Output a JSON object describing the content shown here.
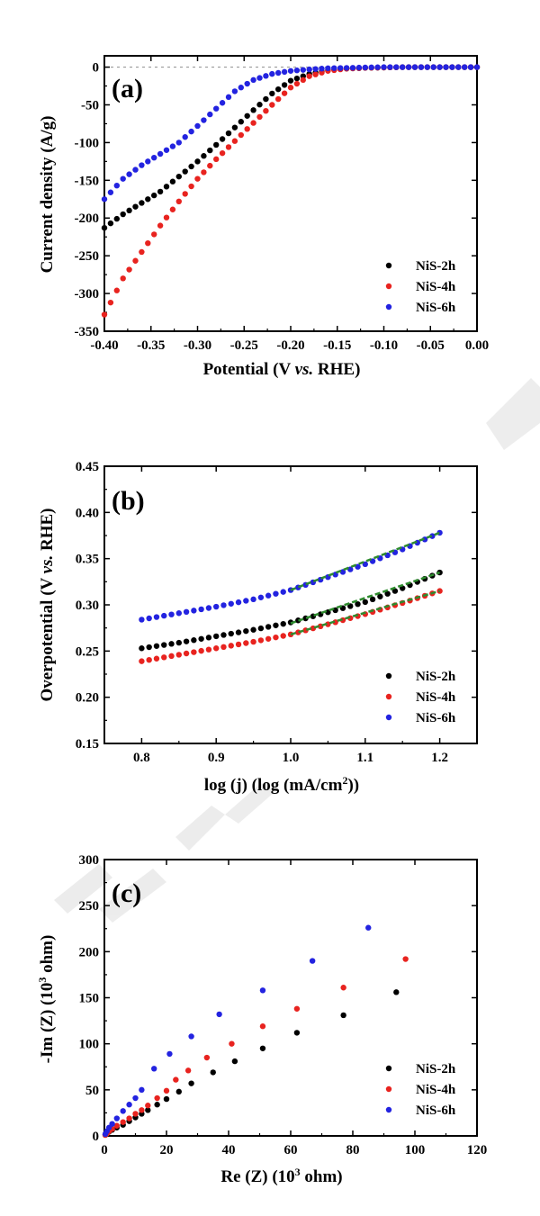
{
  "chart_data": [
    {
      "type": "scatter",
      "panel_label": "(a)",
      "xlabel": "Potential (V vs. RHE)",
      "ylabel": "Current density (A/g)",
      "xlim": [
        -0.4,
        0.0
      ],
      "ylim": [
        -350,
        15
      ],
      "xticks": [
        "-0.40",
        "-0.35",
        "-0.30",
        "-0.25",
        "-0.20",
        "-0.15",
        "-0.10",
        "-0.05",
        "0.00"
      ],
      "yticks": [
        "0",
        "-50",
        "-100",
        "-150",
        "-200",
        "-250",
        "-300",
        "-350"
      ],
      "xtick_values": [
        -0.4,
        -0.35,
        -0.3,
        -0.25,
        -0.2,
        -0.15,
        -0.1,
        -0.05,
        0.0
      ],
      "ytick_values": [
        0,
        -50,
        -100,
        -150,
        -200,
        -250,
        -300,
        -350
      ],
      "reference_line_y": 0,
      "legend_position": "bottom-right",
      "series": [
        {
          "name": "NiS-2h",
          "color": "#000000",
          "x": [
            -0.4,
            -0.38,
            -0.36,
            -0.34,
            -0.32,
            -0.3,
            -0.28,
            -0.26,
            -0.24,
            -0.22,
            -0.2,
            -0.18,
            -0.16,
            -0.14,
            -0.12,
            -0.1,
            -0.08,
            -0.06,
            -0.04,
            -0.02,
            0.0
          ],
          "y": [
            -213,
            -195,
            -180,
            -165,
            -145,
            -125,
            -103,
            -80,
            -57,
            -35,
            -18,
            -9,
            -4,
            -2,
            -1,
            -0.5,
            0,
            0,
            0,
            0,
            0
          ]
        },
        {
          "name": "NiS-4h",
          "color": "#e8231f",
          "x": [
            -0.4,
            -0.38,
            -0.36,
            -0.34,
            -0.32,
            -0.3,
            -0.28,
            -0.26,
            -0.24,
            -0.22,
            -0.2,
            -0.18,
            -0.16,
            -0.14,
            -0.12,
            -0.1,
            -0.08,
            -0.06,
            -0.04,
            -0.02,
            0.0
          ],
          "y": [
            -328,
            -280,
            -245,
            -210,
            -178,
            -148,
            -122,
            -98,
            -74,
            -50,
            -27,
            -12,
            -5,
            -2,
            -1,
            -0.5,
            0,
            0,
            0,
            0,
            0
          ]
        },
        {
          "name": "NiS-6h",
          "color": "#2323e0",
          "x": [
            -0.4,
            -0.38,
            -0.36,
            -0.34,
            -0.32,
            -0.3,
            -0.28,
            -0.26,
            -0.24,
            -0.22,
            -0.2,
            -0.18,
            -0.16,
            -0.14,
            -0.12,
            -0.1,
            -0.08,
            -0.06,
            -0.04,
            -0.02,
            0.0
          ],
          "y": [
            -175,
            -148,
            -130,
            -115,
            -100,
            -78,
            -55,
            -32,
            -17,
            -9,
            -5,
            -3,
            -1.5,
            -1,
            -0.5,
            0,
            0,
            0,
            0,
            0,
            0
          ]
        }
      ]
    },
    {
      "type": "scatter",
      "panel_label": "(b)",
      "xlabel": "log (j) (log (mA/cm²))",
      "ylabel": "Overpotential (V vs. RHE)",
      "xlim": [
        0.75,
        1.25
      ],
      "ylim": [
        0.15,
        0.45
      ],
      "xticks": [
        "0.8",
        "0.9",
        "1.0",
        "1.1",
        "1.2"
      ],
      "yticks": [
        "0.15",
        "0.20",
        "0.25",
        "0.30",
        "0.35",
        "0.40",
        "0.45"
      ],
      "xtick_values": [
        0.8,
        0.9,
        1.0,
        1.1,
        1.2
      ],
      "ytick_values": [
        0.15,
        0.2,
        0.25,
        0.3,
        0.35,
        0.4,
        0.45
      ],
      "legend_position": "bottom-right",
      "fit_color": "#2e8b2e",
      "series": [
        {
          "name": "NiS-2h",
          "color": "#000000",
          "x": [
            0.8,
            0.85,
            0.9,
            0.95,
            1.0,
            1.05,
            1.1,
            1.15,
            1.2
          ],
          "y": [
            0.253,
            0.259,
            0.266,
            0.273,
            0.281,
            0.292,
            0.303,
            0.318,
            0.335
          ],
          "fit": {
            "x": [
              1.0,
              1.2
            ],
            "y": [
              0.28,
              0.335
            ]
          }
        },
        {
          "name": "NiS-4h",
          "color": "#e8231f",
          "x": [
            0.8,
            0.85,
            0.9,
            0.95,
            1.0,
            1.05,
            1.1,
            1.15,
            1.2
          ],
          "y": [
            0.239,
            0.246,
            0.253,
            0.26,
            0.268,
            0.279,
            0.29,
            0.302,
            0.315
          ],
          "fit": {
            "x": [
              1.0,
              1.2
            ],
            "y": [
              0.268,
              0.315
            ]
          }
        },
        {
          "name": "NiS-6h",
          "color": "#2323e0",
          "x": [
            0.8,
            0.85,
            0.9,
            0.95,
            1.0,
            1.05,
            1.1,
            1.15,
            1.2
          ],
          "y": [
            0.284,
            0.291,
            0.298,
            0.306,
            0.316,
            0.33,
            0.344,
            0.36,
            0.378
          ],
          "fit": {
            "x": [
              1.0,
              1.2
            ],
            "y": [
              0.316,
              0.378
            ]
          }
        }
      ]
    },
    {
      "type": "scatter",
      "panel_label": "(c)",
      "xlabel": "Re (Z) (10³ ohm)",
      "ylabel": "-Im (Z) (10³ ohm)",
      "xlim": [
        0,
        120
      ],
      "ylim": [
        0,
        300
      ],
      "xticks": [
        "0",
        "20",
        "40",
        "60",
        "80",
        "100",
        "120"
      ],
      "yticks": [
        "0",
        "50",
        "100",
        "150",
        "200",
        "250",
        "300"
      ],
      "xtick_values": [
        0,
        20,
        40,
        60,
        80,
        100,
        120
      ],
      "ytick_values": [
        0,
        50,
        100,
        150,
        200,
        250,
        300
      ],
      "legend_position": "bottom-right",
      "series": [
        {
          "name": "NiS-2h",
          "color": "#000000",
          "x": [
            0.3,
            0.8,
            1.5,
            2.5,
            4,
            6,
            8,
            10,
            12,
            14,
            17,
            20,
            24,
            28,
            35,
            42,
            51,
            62,
            77,
            94
          ],
          "y": [
            1,
            2.5,
            4.5,
            6.5,
            9,
            12,
            16,
            20,
            24,
            28,
            34,
            40,
            48,
            57,
            69,
            81,
            95,
            112,
            131,
            156
          ]
        },
        {
          "name": "NiS-4h",
          "color": "#e8231f",
          "x": [
            0.3,
            0.8,
            1.5,
            2.5,
            4,
            6,
            8,
            10,
            12,
            14,
            17,
            20,
            23,
            27,
            33,
            41,
            51,
            62,
            77,
            97
          ],
          "y": [
            1,
            2.5,
            5,
            7.5,
            11,
            15,
            19,
            24,
            28,
            33,
            41,
            49,
            61,
            71,
            85,
            100,
            119,
            138,
            161,
            192
          ]
        },
        {
          "name": "NiS-6h",
          "color": "#2323e0",
          "x": [
            0.3,
            0.8,
            1.5,
            2.5,
            4,
            6,
            8,
            10,
            12,
            16,
            21,
            28,
            37,
            51,
            67,
            85
          ],
          "y": [
            2,
            5,
            9,
            13,
            19,
            27,
            34,
            41,
            50,
            73,
            89,
            108,
            132,
            158,
            190,
            226
          ]
        }
      ]
    }
  ]
}
